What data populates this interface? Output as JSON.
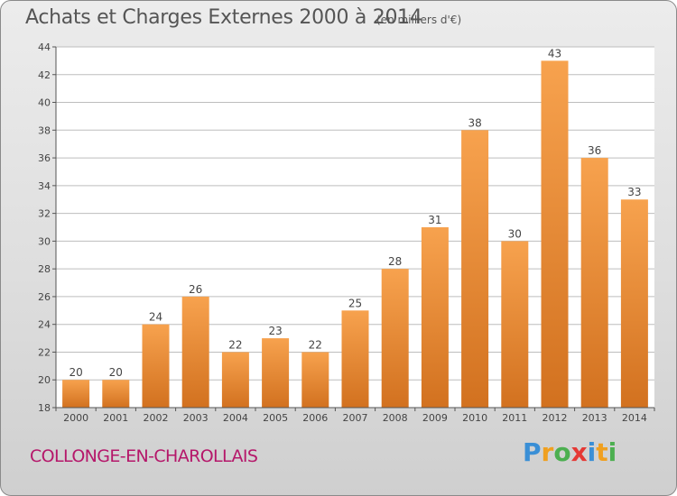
{
  "header": {
    "title": "Achats et Charges Externes 2000 à 2014",
    "subtitle": "(en milliers d'€)"
  },
  "footer": {
    "town": "COLLONGE-EN-CHAROLLAIS",
    "logo": {
      "letters": [
        "P",
        "r",
        "o",
        "x",
        "i",
        "t",
        "i"
      ],
      "colors": [
        "#3a8fd6",
        "#f0a020",
        "#4caf50",
        "#e53935",
        "#3a8fd6",
        "#f0a020",
        "#4caf50"
      ]
    }
  },
  "colors": {
    "bar_top": "#f7a24e",
    "bar_bottom": "#d2711f",
    "grid": "#bdbdbd",
    "axis": "#555555"
  },
  "chart_data": {
    "type": "bar",
    "categories": [
      "2000",
      "2001",
      "2002",
      "2003",
      "2004",
      "2005",
      "2006",
      "2007",
      "2008",
      "2009",
      "2010",
      "2011",
      "2012",
      "2013",
      "2014"
    ],
    "values": [
      20,
      20,
      24,
      26,
      22,
      23,
      22,
      25,
      28,
      31,
      38,
      30,
      43,
      36,
      33
    ],
    "title": "Achats et Charges Externes 2000 à 2014",
    "ylim": [
      18,
      44
    ],
    "yticks": [
      18,
      20,
      22,
      24,
      26,
      28,
      30,
      32,
      34,
      36,
      38,
      40,
      42,
      44
    ],
    "grid": true,
    "data_labels": true
  }
}
